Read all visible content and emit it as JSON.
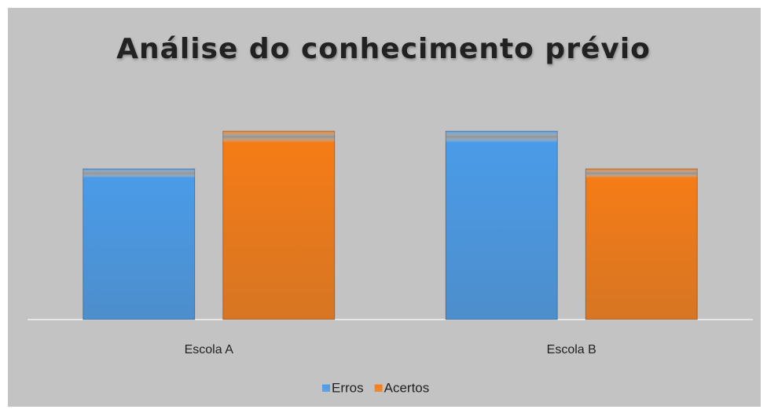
{
  "chart_data": {
    "type": "bar",
    "title": "Análise do conhecimento prévio",
    "categories": [
      "Escola A",
      "Escola B"
    ],
    "series": [
      {
        "name": "Erros",
        "color": "#4a9be8",
        "values": [
          8,
          10
        ]
      },
      {
        "name": "Acertos",
        "color": "#f57c16",
        "values": [
          10,
          8
        ]
      }
    ],
    "ylim": [
      0,
      12
    ],
    "legend": "bottom"
  }
}
